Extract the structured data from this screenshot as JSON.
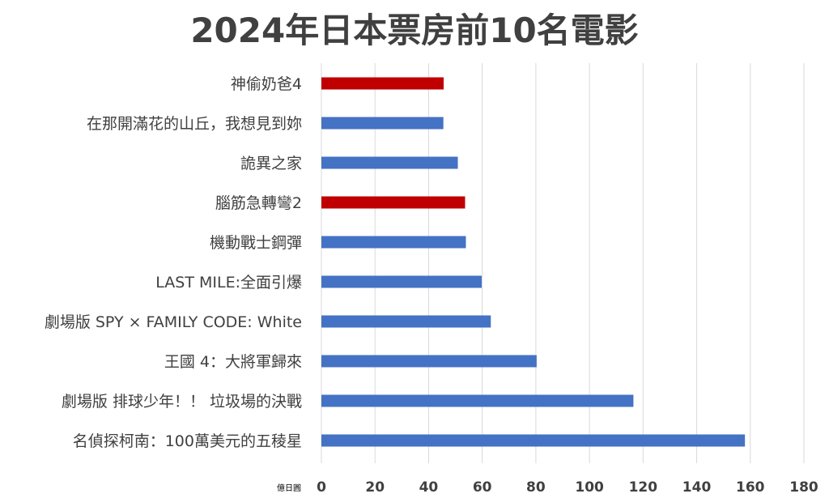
{
  "chart_data": {
    "type": "bar",
    "orientation": "horizontal",
    "title": "2024年日本票房前10名電影",
    "xlabel": "億日圓",
    "ylabel": "",
    "xlim": [
      0,
      180
    ],
    "x_ticks": [
      0,
      20,
      40,
      60,
      80,
      100,
      120,
      140,
      160,
      180
    ],
    "grid": "vertical",
    "legend": "none",
    "categories": [
      "神偷奶爸4",
      "在那開滿花的山丘，我想見到妳",
      "詭異之家",
      "腦筋急轉彎2",
      "機動戰士鋼彈",
      "LAST MILE:全面引爆",
      "劇場版 SPY × FAMILY CODE: White",
      "王國 4：大將軍歸來",
      "劇場版 排球少年！！ 垃圾場的決戰",
      "名偵探柯南：100萬美元的五稜星"
    ],
    "values": [
      45.6,
      45.5,
      50.9,
      53.6,
      53.9,
      59.8,
      63.2,
      80.3,
      116.4,
      158.0
    ],
    "bar_colors": [
      "#C00000",
      "#4472C4",
      "#4472C4",
      "#C00000",
      "#4472C4",
      "#4472C4",
      "#4472C4",
      "#4472C4",
      "#4472C4",
      "#4472C4"
    ],
    "colors": {
      "default": "#4472C4",
      "highlight": "#C00000",
      "grid": "#D9D9D9",
      "text": "#404040"
    }
  }
}
